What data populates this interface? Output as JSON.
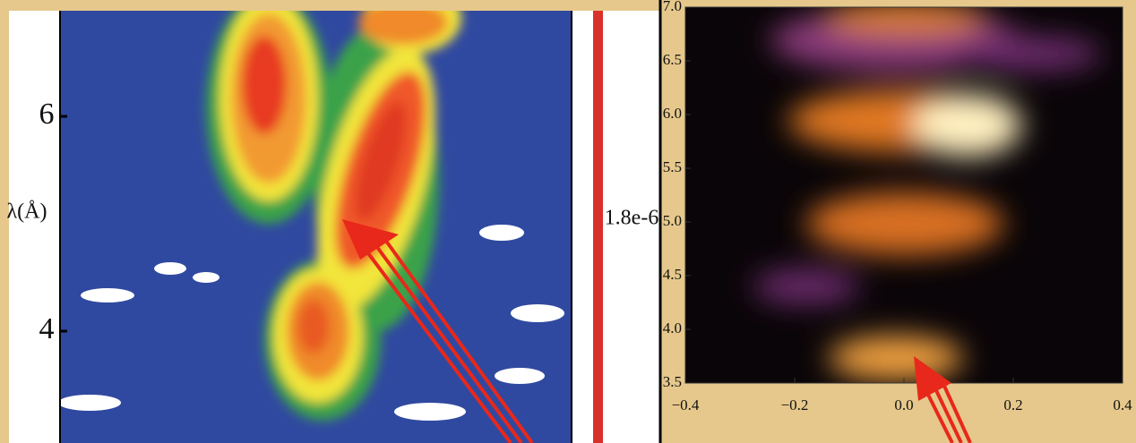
{
  "left_panel": {
    "y_label": "λ(Å)",
    "yticks": [
      "6",
      "4"
    ],
    "colorbar_label": "1.8e-6"
  },
  "right_panel": {
    "yticks": [
      "7.0",
      "6.5",
      "6.0",
      "5.5",
      "5.0",
      "4.5",
      "4.0",
      "3.5"
    ],
    "xticks": [
      "−0.4",
      "−0.2",
      "0.0",
      "0.2",
      "0.4"
    ]
  }
}
